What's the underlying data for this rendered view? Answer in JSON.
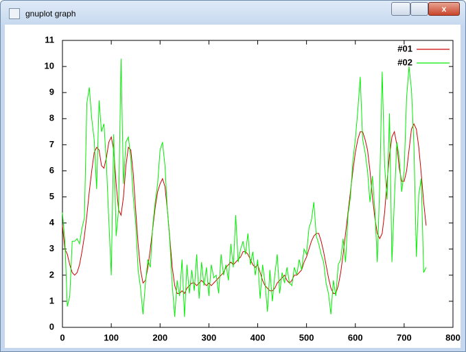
{
  "window": {
    "title": "gnuplot graph"
  },
  "chart_data": {
    "type": "line",
    "x": [
      0,
      5,
      10,
      15,
      20,
      25,
      30,
      35,
      40,
      45,
      50,
      55,
      60,
      65,
      70,
      75,
      80,
      85,
      90,
      95,
      100,
      105,
      110,
      115,
      120,
      125,
      130,
      135,
      140,
      145,
      150,
      155,
      160,
      165,
      170,
      175,
      180,
      185,
      190,
      195,
      200,
      205,
      210,
      215,
      220,
      225,
      230,
      235,
      240,
      245,
      250,
      255,
      260,
      265,
      270,
      275,
      280,
      285,
      290,
      295,
      300,
      305,
      310,
      315,
      320,
      325,
      330,
      335,
      340,
      345,
      350,
      355,
      360,
      365,
      370,
      375,
      380,
      385,
      390,
      395,
      400,
      405,
      410,
      415,
      420,
      425,
      430,
      435,
      440,
      445,
      450,
      455,
      460,
      465,
      470,
      475,
      480,
      485,
      490,
      495,
      500,
      505,
      510,
      515,
      520,
      525,
      530,
      535,
      540,
      545,
      550,
      555,
      560,
      565,
      570,
      575,
      580,
      585,
      590,
      595,
      600,
      605,
      610,
      615,
      620,
      625,
      630,
      635,
      640,
      645,
      650,
      655,
      660,
      665,
      670,
      675,
      680,
      685,
      690,
      695,
      700,
      705,
      710,
      715,
      720,
      725,
      730,
      735,
      740,
      745
    ],
    "series": [
      {
        "name": "#01",
        "color": "#cc0000",
        "values": [
          3.9,
          3.0,
          2.8,
          2.4,
          2.1,
          2.0,
          2.1,
          2.4,
          2.9,
          3.5,
          4.3,
          5.2,
          6.0,
          6.7,
          6.9,
          6.8,
          6.2,
          6.1,
          6.5,
          7.1,
          7.3,
          6.8,
          5.5,
          4.5,
          4.3,
          5.0,
          6.2,
          6.9,
          6.8,
          5.9,
          4.5,
          3.2,
          2.2,
          1.7,
          1.8,
          2.3,
          3.0,
          3.8,
          4.6,
          5.2,
          5.5,
          5.7,
          5.4,
          4.5,
          3.4,
          2.3,
          1.6,
          1.3,
          1.3,
          1.4,
          1.3,
          1.5,
          1.6,
          1.7,
          1.7,
          1.6,
          1.7,
          1.8,
          1.7,
          1.6,
          1.7,
          1.6,
          1.7,
          1.8,
          1.9,
          2.0,
          2.1,
          2.3,
          2.4,
          2.5,
          2.4,
          2.5,
          2.6,
          2.7,
          2.9,
          2.9,
          2.8,
          2.6,
          2.4,
          2.3,
          2.4,
          2.1,
          1.8,
          1.6,
          1.5,
          1.4,
          1.4,
          1.5,
          1.7,
          1.8,
          1.9,
          2.0,
          1.8,
          1.7,
          1.8,
          2.0,
          2.0,
          2.1,
          2.2,
          2.5,
          2.7,
          3.0,
          3.3,
          3.5,
          3.6,
          3.6,
          3.3,
          2.9,
          2.4,
          1.9,
          1.5,
          1.3,
          1.3,
          1.6,
          2.1,
          2.8,
          3.6,
          4.4,
          5.2,
          6.0,
          6.7,
          7.2,
          7.5,
          7.5,
          7.2,
          6.8,
          6.0,
          5.0,
          4.2,
          3.6,
          3.4,
          3.6,
          4.4,
          5.6,
          6.6,
          7.3,
          7.5,
          7.0,
          6.1,
          5.6,
          5.6,
          6.0,
          6.8,
          7.6,
          7.8,
          7.6,
          6.9,
          5.9,
          4.8,
          3.9
        ]
      },
      {
        "name": "#02",
        "color": "#00ee00",
        "values": [
          4.4,
          3.3,
          0.8,
          1.2,
          3.3,
          3.3,
          3.4,
          3.2,
          3.8,
          4.2,
          8.6,
          9.2,
          8.0,
          7.2,
          5.3,
          8.7,
          7.5,
          7.8,
          6.3,
          4.1,
          2.0,
          7.4,
          3.5,
          4.5,
          10.3,
          5.5,
          7.1,
          7.3,
          6.5,
          5.0,
          4.0,
          2.2,
          1.5,
          0.5,
          1.7,
          2.6,
          2.3,
          3.9,
          4.8,
          5.5,
          6.8,
          7.1,
          6.2,
          4.5,
          3.3,
          1.6,
          0.4,
          1.8,
          1.2,
          2.6,
          0.4,
          2.4,
          1.3,
          2.2,
          1.4,
          2.8,
          1.1,
          2.5,
          1.6,
          2.3,
          1.2,
          2.4,
          1.9,
          2.0,
          1.3,
          2.8,
          2.0,
          2.4,
          1.8,
          3.2,
          2.3,
          4.3,
          2.5,
          3.0,
          3.3,
          2.8,
          3.6,
          2.4,
          2.9,
          2.0,
          2.6,
          1.1,
          2.4,
          1.7,
          0.6,
          2.2,
          1.0,
          2.0,
          2.8,
          1.3,
          2.1,
          1.7,
          2.3,
          1.7,
          1.6,
          2.3,
          2.0,
          2.6,
          2.2,
          3.0,
          2.8,
          3.8,
          4.1,
          4.8,
          3.5,
          3.2,
          2.8,
          2.5,
          1.7,
          1.3,
          0.5,
          1.8,
          1.2,
          2.4,
          2.6,
          3.4,
          2.5,
          4.3,
          5.0,
          6.4,
          7.2,
          8.3,
          9.6,
          7.2,
          6.7,
          6.0,
          4.8,
          5.8,
          4.5,
          2.5,
          5.5,
          9.8,
          6.2,
          4.9,
          8.2,
          2.5,
          4.9,
          7.1,
          6.5,
          5.2,
          6.0,
          8.8,
          10.0,
          9.1,
          7.0,
          2.7,
          5.1,
          5.7,
          2.1,
          2.3
        ]
      }
    ],
    "xlim": [
      0,
      800
    ],
    "xticks": [
      0,
      100,
      200,
      300,
      400,
      500,
      600,
      700,
      800
    ],
    "ylim": [
      0,
      11
    ],
    "yticks": [
      0,
      1,
      2,
      3,
      4,
      5,
      6,
      7,
      8,
      9,
      10,
      11
    ],
    "grid": false,
    "legend": "top-right"
  }
}
